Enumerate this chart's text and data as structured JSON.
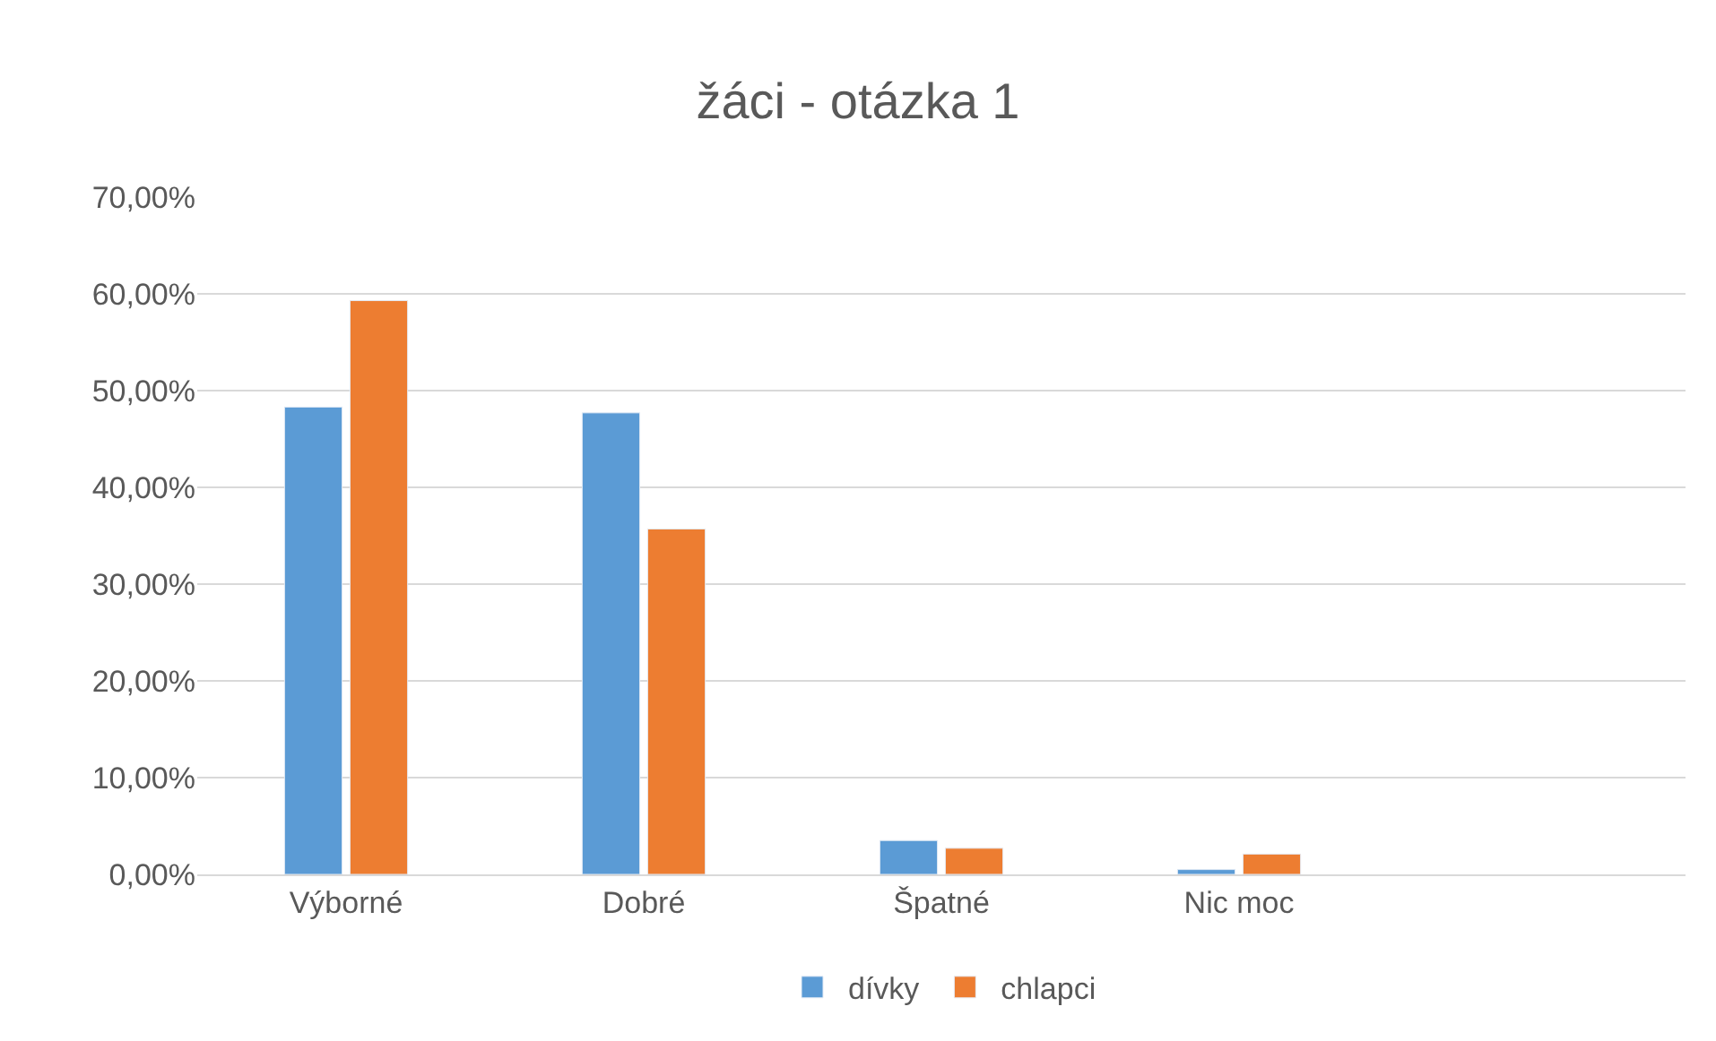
{
  "chart_data": {
    "type": "bar",
    "title": "žáci - otázka 1",
    "categories": [
      "Výborné",
      "Dobré",
      "Špatné",
      "Nic moc",
      null
    ],
    "series": [
      {
        "name": "dívky",
        "color": "#5b9bd5",
        "values": [
          48.3,
          47.7,
          3.5,
          0.5,
          null
        ]
      },
      {
        "name": "chlapci",
        "color": "#ed7d31",
        "values": [
          59.3,
          35.7,
          2.7,
          2.1,
          null
        ]
      }
    ],
    "ylim": [
      0,
      70
    ],
    "yticks": [
      {
        "value": 0,
        "label": "0,00%"
      },
      {
        "value": 10,
        "label": "10,00%"
      },
      {
        "value": 20,
        "label": "20,00%"
      },
      {
        "value": 30,
        "label": "30,00%"
      },
      {
        "value": 40,
        "label": "40,00%"
      },
      {
        "value": 50,
        "label": "50,00%"
      },
      {
        "value": 60,
        "label": "60,00%"
      },
      {
        "value": 70,
        "label": "70,00%"
      }
    ],
    "grid": "y",
    "legend": "bottom"
  }
}
